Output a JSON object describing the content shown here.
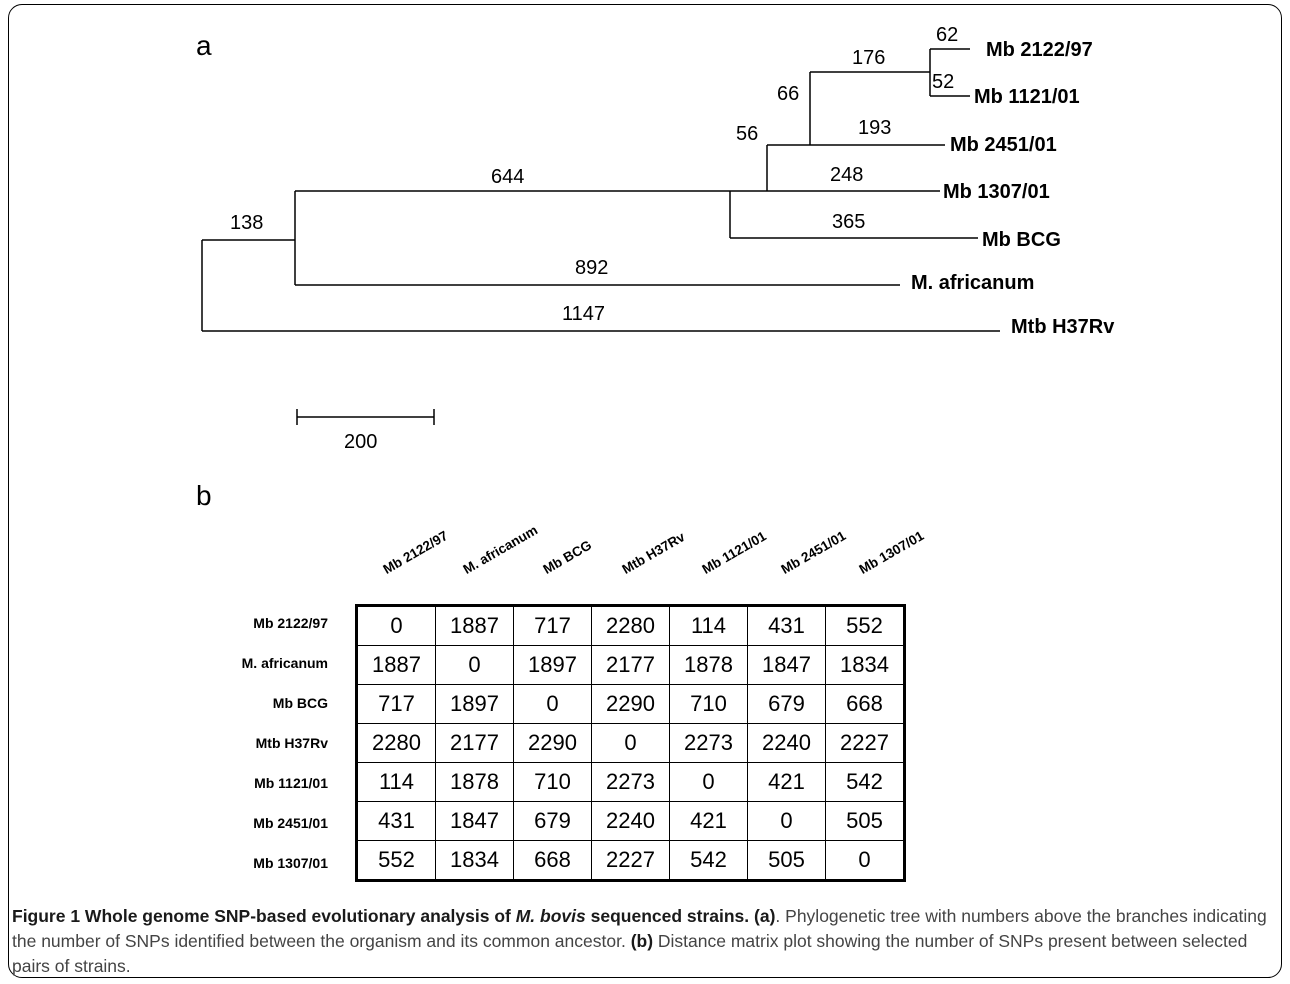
{
  "panel_a": {
    "label": "a",
    "leaves": [
      "Mb 2122/97",
      "Mb 1121/01",
      "Mb 2451/01",
      "Mb 1307/01",
      "Mb BCG",
      "M. africanum",
      "Mtb H37Rv"
    ],
    "branch_labels": [
      "62",
      "52",
      "176",
      "66",
      "193",
      "56",
      "248",
      "365",
      "644",
      "892",
      "138",
      "1147"
    ],
    "scale_bar_label": "200"
  },
  "panel_b": {
    "label": "b",
    "columns": [
      "Mb 2122/97",
      "M. africanum",
      "Mb BCG",
      "Mtb H37Rv",
      "Mb 1121/01",
      "Mb 2451/01",
      "Mb 1307/01"
    ],
    "rows": [
      {
        "name": "Mb 2122/97",
        "values": [
          "0",
          "1887",
          "717",
          "2280",
          "114",
          "431",
          "552"
        ]
      },
      {
        "name": "M. africanum",
        "values": [
          "1887",
          "0",
          "1897",
          "2177",
          "1878",
          "1847",
          "1834"
        ]
      },
      {
        "name": "Mb BCG",
        "values": [
          "717",
          "1897",
          "0",
          "2290",
          "710",
          "679",
          "668"
        ]
      },
      {
        "name": "Mtb H37Rv",
        "values": [
          "2280",
          "2177",
          "2290",
          "0",
          "2273",
          "2240",
          "2227"
        ]
      },
      {
        "name": "Mb 1121/01",
        "values": [
          "114",
          "1878",
          "710",
          "2273",
          "0",
          "421",
          "542"
        ]
      },
      {
        "name": "Mb 2451/01",
        "values": [
          "431",
          "1847",
          "679",
          "2240",
          "421",
          "0",
          "505"
        ]
      },
      {
        "name": "Mb 1307/01",
        "values": [
          "552",
          "1834",
          "668",
          "2227",
          "542",
          "505",
          "0"
        ]
      }
    ]
  },
  "caption": {
    "title_prefix": "Figure 1 Whole genome SNP-based evolutionary analysis of ",
    "title_species": "M. bovis",
    "title_suffix": " sequenced strains.",
    "part_a_label": "(a)",
    "part_a_text": ". Phylogenetic tree with numbers above the branches indicating the number of SNPs identified between the organism and its common ancestor.",
    "part_b_label": "(b)",
    "part_b_text": " Distance matrix plot showing the number of SNPs present between selected pairs of strains."
  }
}
